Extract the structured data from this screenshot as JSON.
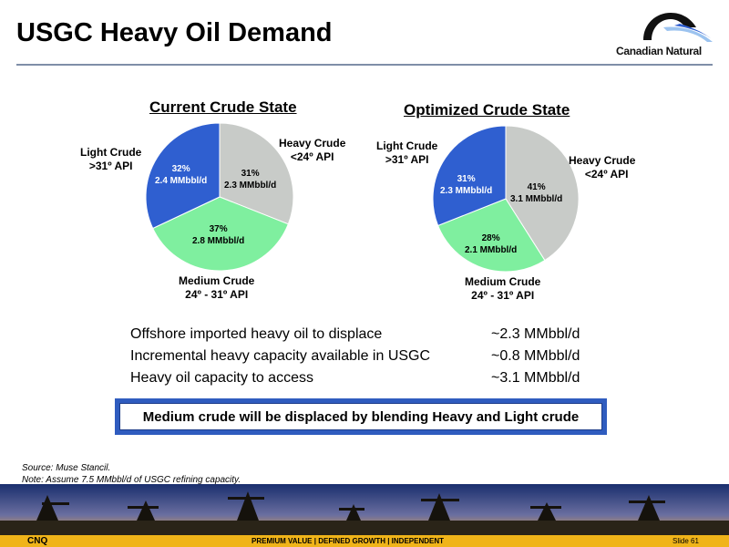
{
  "slide": {
    "title": "USGC Heavy Oil Demand",
    "logo_text": "Canadian Natural",
    "notes": [
      "Source: Muse Stancil.",
      "Note: Assume 7.5 MMbbl/d of USGC refining capacity."
    ],
    "footer_left": "CNQ",
    "footer_mid": "PREMIUM VALUE  |  DEFINED GROWTH  |  INDEPENDENT",
    "footer_right": "Slide 61"
  },
  "colors": {
    "heavy": "#c8cbc8",
    "medium": "#7fef9f",
    "light": "#2f5fd0",
    "accent": "#2f5cbf",
    "footer": "#f0b419"
  },
  "chart_data": [
    {
      "type": "pie",
      "title": "Current Crude State",
      "slices": [
        {
          "name": "Heavy Crude",
          "sub": "<24º API",
          "percent_label": "31%",
          "volume_label": "2.3 MMbbl/d",
          "value": 31,
          "color": "#c8cbc8"
        },
        {
          "name": "Medium Crude",
          "sub": "24º - 31º API",
          "percent_label": "37%",
          "volume_label": "2.8 MMbbl/d",
          "value": 37,
          "color": "#7fef9f"
        },
        {
          "name": "Light Crude",
          "sub": ">31º API",
          "percent_label": "32%",
          "volume_label": "2.4 MMbbl/d",
          "value": 32,
          "color": "#2f5fd0"
        }
      ]
    },
    {
      "type": "pie",
      "title": "Optimized Crude State",
      "slices": [
        {
          "name": "Heavy Crude",
          "sub": "<24º API",
          "percent_label": "41%",
          "volume_label": "3.1 MMbbl/d",
          "value": 41,
          "color": "#c8cbc8"
        },
        {
          "name": "Medium Crude",
          "sub": "24º - 31º API",
          "percent_label": "28%",
          "volume_label": "2.1 MMbbl/d",
          "value": 28,
          "color": "#7fef9f"
        },
        {
          "name": "Light Crude",
          "sub": ">31º API",
          "percent_label": "31%",
          "volume_label": "2.3 MMbbl/d",
          "value": 31,
          "color": "#2f5fd0"
        }
      ]
    }
  ],
  "summary": [
    {
      "label": "Offshore imported heavy oil to displace",
      "value": "~2.3 MMbbl/d"
    },
    {
      "label": "Incremental heavy capacity available in USGC",
      "value": "~0.8 MMbbl/d"
    },
    {
      "label": "Heavy oil capacity to access",
      "value": "~3.1 MMbbl/d"
    }
  ],
  "callout": "Medium crude will be displaced by blending Heavy and Light crude"
}
